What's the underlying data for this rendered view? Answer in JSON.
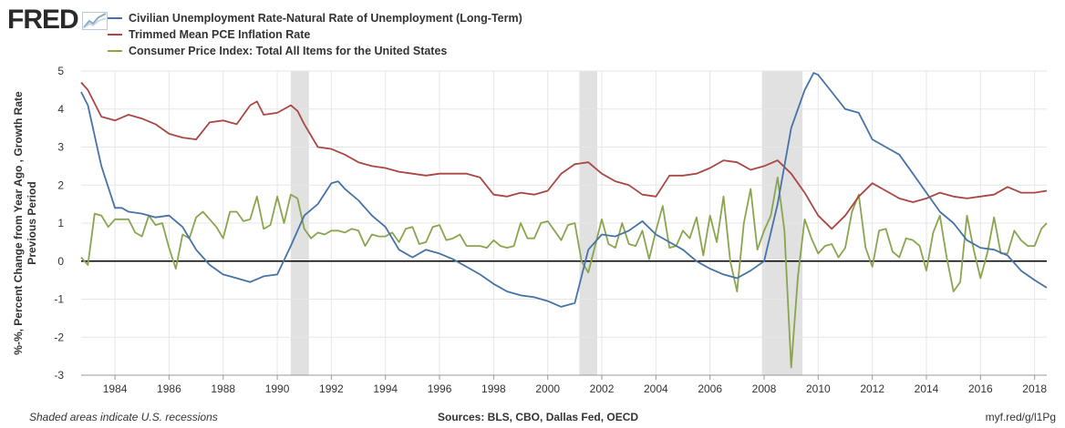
{
  "brand": {
    "logo_text": "FRED",
    "logo_icon": "chart-trend-icon"
  },
  "footer": {
    "note": "Shaded areas indicate U.S. recessions",
    "sources": "Sources: BLS, CBO, Dallas Fed, OECD",
    "link": "myf.red/g/l1Pg"
  },
  "chart_data": {
    "type": "line",
    "ylabel": "%-%, Percent Change from Year Ago , Growth Rate Previous Period",
    "xlabel": "",
    "xlim": [
      1982.75,
      2018.45
    ],
    "ylim": [
      -3,
      5
    ],
    "yticks": [
      -3,
      -2,
      -1,
      0,
      1,
      2,
      3,
      4,
      5
    ],
    "xticks": [
      1984,
      1986,
      1988,
      1990,
      1992,
      1994,
      1996,
      1998,
      2000,
      2002,
      2004,
      2006,
      2008,
      2010,
      2012,
      2014,
      2016,
      2018
    ],
    "grid": true,
    "legend_position": "top-left",
    "zero_line": true,
    "recessions": [
      [
        1990.5,
        1991.17
      ],
      [
        2001.17,
        2001.83
      ],
      [
        2007.92,
        2009.42
      ]
    ],
    "series": [
      {
        "name": "Civilian Unemployment Rate-Natural Rate of Unemployment (Long-Term)",
        "color": "#4572a7",
        "x": [
          1982.75,
          1983,
          1983.5,
          1984,
          1984.25,
          1984.5,
          1985,
          1985.5,
          1986,
          1986.5,
          1987,
          1987.5,
          1988,
          1988.5,
          1989,
          1989.5,
          1990,
          1990.5,
          1991,
          1991.5,
          1992,
          1992.25,
          1992.5,
          1993,
          1993.5,
          1994,
          1994.5,
          1995,
          1995.5,
          1996,
          1996.5,
          1997,
          1997.5,
          1998,
          1998.5,
          1999,
          1999.5,
          2000,
          2000.5,
          2001,
          2001.5,
          2002,
          2002.5,
          2003,
          2003.5,
          2004,
          2004.5,
          2005,
          2005.5,
          2006,
          2006.5,
          2007,
          2007.5,
          2008,
          2008.5,
          2009,
          2009.5,
          2009.83,
          2010,
          2010.5,
          2011,
          2011.5,
          2012,
          2012.5,
          2013,
          2013.5,
          2014,
          2014.5,
          2015,
          2015.5,
          2016,
          2016.5,
          2017,
          2017.5,
          2018,
          2018.45
        ],
        "values": [
          4.45,
          4.1,
          2.5,
          1.4,
          1.4,
          1.3,
          1.25,
          1.15,
          1.2,
          0.9,
          0.3,
          -0.1,
          -0.35,
          -0.45,
          -0.55,
          -0.4,
          -0.35,
          0.4,
          1.2,
          1.5,
          2.05,
          2.1,
          1.9,
          1.6,
          1.2,
          0.9,
          0.3,
          0.1,
          0.3,
          0.2,
          0.05,
          -0.15,
          -0.35,
          -0.6,
          -0.8,
          -0.9,
          -0.95,
          -1.05,
          -1.2,
          -1.1,
          0.3,
          0.7,
          0.65,
          0.8,
          1.05,
          0.7,
          0.5,
          0.3,
          0.0,
          -0.2,
          -0.35,
          -0.45,
          -0.25,
          0.0,
          1.5,
          3.5,
          4.5,
          4.95,
          4.9,
          4.45,
          4.0,
          3.9,
          3.2,
          3.0,
          2.8,
          2.3,
          1.8,
          1.3,
          1.0,
          0.55,
          0.35,
          0.3,
          0.15,
          -0.25,
          -0.5,
          -0.7
        ]
      },
      {
        "name": "Trimmed Mean PCE Inflation Rate",
        "color": "#aa4643",
        "x": [
          1982.75,
          1983,
          1983.5,
          1984,
          1984.5,
          1985,
          1985.5,
          1986,
          1986.5,
          1987,
          1987.5,
          1988,
          1988.5,
          1989,
          1989.25,
          1989.5,
          1990,
          1990.5,
          1990.75,
          1991,
          1991.5,
          1992,
          1992.5,
          1993,
          1993.5,
          1994,
          1994.5,
          1995,
          1995.5,
          1996,
          1996.5,
          1997,
          1997.5,
          1998,
          1998.5,
          1999,
          1999.5,
          2000,
          2000.5,
          2001,
          2001.5,
          2002,
          2002.5,
          2003,
          2003.5,
          2004,
          2004.5,
          2005,
          2005.5,
          2006,
          2006.5,
          2007,
          2007.5,
          2008,
          2008.5,
          2009,
          2009.5,
          2010,
          2010.5,
          2011,
          2011.5,
          2012,
          2012.5,
          2013,
          2013.5,
          2014,
          2014.5,
          2015,
          2015.5,
          2016,
          2016.5,
          2017,
          2017.5,
          2018,
          2018.45
        ],
        "values": [
          4.7,
          4.5,
          3.8,
          3.7,
          3.85,
          3.75,
          3.6,
          3.35,
          3.25,
          3.2,
          3.65,
          3.7,
          3.6,
          4.1,
          4.2,
          3.85,
          3.9,
          4.1,
          3.95,
          3.6,
          3.0,
          2.95,
          2.8,
          2.6,
          2.5,
          2.45,
          2.35,
          2.3,
          2.25,
          2.3,
          2.3,
          2.3,
          2.2,
          1.75,
          1.7,
          1.8,
          1.75,
          1.85,
          2.3,
          2.55,
          2.6,
          2.3,
          2.1,
          2.0,
          1.75,
          1.7,
          2.25,
          2.25,
          2.3,
          2.45,
          2.65,
          2.6,
          2.4,
          2.5,
          2.65,
          2.3,
          1.8,
          1.2,
          0.85,
          1.2,
          1.7,
          2.05,
          1.85,
          1.65,
          1.55,
          1.65,
          1.8,
          1.7,
          1.65,
          1.7,
          1.75,
          1.95,
          1.8,
          1.8,
          1.85
        ]
      },
      {
        "name": "Consumer Price Index: Total All Items for the United States",
        "color": "#89a54e",
        "x": [
          1982.75,
          1983,
          1983.25,
          1983.5,
          1983.75,
          1984,
          1984.25,
          1984.5,
          1984.75,
          1985,
          1985.25,
          1985.5,
          1985.75,
          1986,
          1986.25,
          1986.5,
          1986.75,
          1987,
          1987.25,
          1987.5,
          1987.75,
          1988,
          1988.25,
          1988.5,
          1988.75,
          1989,
          1989.25,
          1989.5,
          1989.75,
          1990,
          1990.25,
          1990.5,
          1990.75,
          1991,
          1991.25,
          1991.5,
          1991.75,
          1992,
          1992.25,
          1992.5,
          1992.75,
          1993,
          1993.25,
          1993.5,
          1993.75,
          1994,
          1994.25,
          1994.5,
          1994.75,
          1995,
          1995.25,
          1995.5,
          1995.75,
          1996,
          1996.25,
          1996.5,
          1996.75,
          1997,
          1997.25,
          1997.5,
          1997.75,
          1998,
          1998.25,
          1998.5,
          1998.75,
          1999,
          1999.25,
          1999.5,
          1999.75,
          2000,
          2000.25,
          2000.5,
          2000.75,
          2001,
          2001.25,
          2001.5,
          2001.75,
          2002,
          2002.25,
          2002.5,
          2002.75,
          2003,
          2003.25,
          2003.5,
          2003.75,
          2004,
          2004.25,
          2004.5,
          2004.75,
          2005,
          2005.25,
          2005.5,
          2005.75,
          2006,
          2006.25,
          2006.5,
          2006.75,
          2007,
          2007.25,
          2007.5,
          2007.75,
          2008,
          2008.25,
          2008.5,
          2008.75,
          2009,
          2009.25,
          2009.5,
          2009.75,
          2010,
          2010.25,
          2010.5,
          2010.75,
          2011,
          2011.25,
          2011.5,
          2011.75,
          2012,
          2012.25,
          2012.5,
          2012.75,
          2013,
          2013.25,
          2013.5,
          2013.75,
          2014,
          2014.25,
          2014.5,
          2014.75,
          2015,
          2015.25,
          2015.5,
          2015.75,
          2016,
          2016.25,
          2016.5,
          2016.75,
          2017,
          2017.25,
          2017.5,
          2017.75,
          2018,
          2018.25,
          2018.45
        ],
        "values": [
          0.1,
          -0.1,
          1.25,
          1.2,
          0.9,
          1.1,
          1.1,
          1.1,
          0.75,
          0.65,
          1.2,
          0.95,
          1.0,
          0.35,
          -0.2,
          0.7,
          0.6,
          1.15,
          1.3,
          1.1,
          0.9,
          0.6,
          1.3,
          1.3,
          1.05,
          1.1,
          1.7,
          0.85,
          0.95,
          1.7,
          1.0,
          1.75,
          1.65,
          0.85,
          0.6,
          0.75,
          0.7,
          0.8,
          0.8,
          0.75,
          0.85,
          0.8,
          0.4,
          0.7,
          0.65,
          0.65,
          0.75,
          0.5,
          0.85,
          0.9,
          0.45,
          0.5,
          0.9,
          0.95,
          0.55,
          0.6,
          0.7,
          0.4,
          0.4,
          0.4,
          0.35,
          0.55,
          0.4,
          0.35,
          0.4,
          1.0,
          0.6,
          0.6,
          1.0,
          1.05,
          0.8,
          0.55,
          0.95,
          1.0,
          0.0,
          -0.3,
          0.4,
          1.1,
          0.45,
          0.35,
          1.0,
          0.45,
          0.4,
          0.8,
          0.05,
          0.8,
          1.45,
          0.35,
          0.4,
          0.8,
          0.6,
          1.15,
          0.15,
          1.2,
          0.5,
          1.7,
          0.0,
          -0.8,
          1.0,
          1.9,
          0.3,
          0.8,
          1.2,
          2.2,
          0.8,
          -2.8,
          -0.4,
          1.1,
          0.6,
          0.2,
          0.4,
          0.45,
          0.1,
          0.35,
          1.3,
          1.75,
          0.35,
          -0.15,
          0.8,
          0.85,
          0.25,
          0.1,
          0.6,
          0.55,
          0.4,
          -0.25,
          0.75,
          1.2,
          0.1,
          -0.8,
          -0.55,
          1.2,
          0.3,
          -0.45,
          0.2,
          1.15,
          0.2,
          0.2,
          0.8,
          0.55,
          0.4,
          0.4,
          0.85,
          1.0
        ]
      }
    ]
  }
}
